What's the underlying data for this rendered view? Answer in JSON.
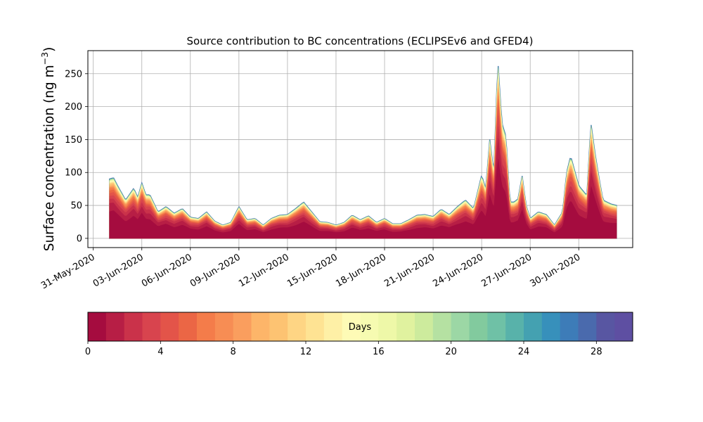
{
  "chart_data": {
    "type": "area",
    "title": "Source contribution to BC concentrations (ECLIPSEv6 and GFED4)",
    "ylabel": "Surface concentration (ng m",
    "ylabel_unit_exponent": "−3",
    "ylabel_close": ")",
    "xlabel": "",
    "x_range": [
      "2020-05-30T16:00",
      "2020-07-03T08:00"
    ],
    "ylim": [
      -14,
      285
    ],
    "yticks": [
      0,
      50,
      100,
      150,
      200,
      250
    ],
    "xticks": [
      "31-May-2020",
      "03-Jun-2020",
      "06-Jun-2020",
      "09-Jun-2020",
      "12-Jun-2020",
      "15-Jun-2020",
      "18-Jun-2020",
      "21-Jun-2020",
      "24-Jun-2020",
      "27-Jun-2020",
      "30-Jun-2020"
    ],
    "grid": true,
    "stacked_by": "Days",
    "series_count": 30,
    "total": {
      "dates": [
        "2020-06-01T00:00",
        "2020-06-01T06:00",
        "2020-06-01T12:00",
        "2020-06-02T00:00",
        "2020-06-02T12:00",
        "2020-06-02T18:00",
        "2020-06-03T00:00",
        "2020-06-03T06:00",
        "2020-06-03T12:00",
        "2020-06-04T00:00",
        "2020-06-04T12:00",
        "2020-06-05T00:00",
        "2020-06-05T12:00",
        "2020-06-06T00:00",
        "2020-06-06T12:00",
        "2020-06-07T00:00",
        "2020-06-07T12:00",
        "2020-06-08T00:00",
        "2020-06-08T12:00",
        "2020-06-09T00:00",
        "2020-06-09T12:00",
        "2020-06-10T00:00",
        "2020-06-10T12:00",
        "2020-06-11T00:00",
        "2020-06-11T12:00",
        "2020-06-12T00:00",
        "2020-06-12T12:00",
        "2020-06-13T00:00",
        "2020-06-13T12:00",
        "2020-06-14T00:00",
        "2020-06-14T12:00",
        "2020-06-15T00:00",
        "2020-06-15T12:00",
        "2020-06-16T00:00",
        "2020-06-16T12:00",
        "2020-06-17T00:00",
        "2020-06-17T12:00",
        "2020-06-18T00:00",
        "2020-06-18T12:00",
        "2020-06-19T00:00",
        "2020-06-19T12:00",
        "2020-06-20T00:00",
        "2020-06-20T12:00",
        "2020-06-21T00:00",
        "2020-06-21T12:00",
        "2020-06-22T00:00",
        "2020-06-22T12:00",
        "2020-06-23T00:00",
        "2020-06-23T12:00",
        "2020-06-24T00:00",
        "2020-06-24T06:00",
        "2020-06-24T12:00",
        "2020-06-24T18:00",
        "2020-06-25T00:00",
        "2020-06-25T06:00",
        "2020-06-25T12:00",
        "2020-06-25T18:00",
        "2020-06-26T00:00",
        "2020-06-26T06:00",
        "2020-06-26T12:00",
        "2020-06-26T18:00",
        "2020-06-27T00:00",
        "2020-06-27T12:00",
        "2020-06-28T00:00",
        "2020-06-28T12:00",
        "2020-06-29T00:00",
        "2020-06-29T06:00",
        "2020-06-29T12:00",
        "2020-06-30T00:00",
        "2020-06-30T12:00",
        "2020-06-30T18:00",
        "2020-07-01T00:00",
        "2020-07-01T06:00",
        "2020-07-01T12:00",
        "2020-07-01T18:00",
        "2020-07-02T00:00",
        "2020-07-02T08:00"
      ],
      "values": [
        90,
        92,
        80,
        58,
        76,
        62,
        84,
        66,
        66,
        40,
        48,
        38,
        45,
        32,
        30,
        40,
        26,
        20,
        24,
        48,
        28,
        30,
        20,
        30,
        35,
        36,
        45,
        55,
        40,
        25,
        24,
        20,
        24,
        35,
        28,
        34,
        24,
        30,
        22,
        22,
        28,
        35,
        36,
        33,
        44,
        36,
        48,
        58,
        45,
        96,
        75,
        150,
        100,
        270,
        175,
        155,
        55,
        55,
        60,
        95,
        50,
        30,
        40,
        36,
        20,
        40,
        100,
        125,
        80,
        65,
        175,
        130,
        92,
        58,
        55,
        52,
        50
      ]
    },
    "colorbar": {
      "label": "Days",
      "ticks": [
        0,
        4,
        8,
        12,
        16,
        20,
        24,
        28
      ],
      "min": 0,
      "max": 30,
      "colors": [
        "#a50c3f",
        "#b71e45",
        "#ca324a",
        "#d8444e",
        "#e35449",
        "#eb6645",
        "#f47c4a",
        "#f78d54",
        "#fa9e5e",
        "#fdb569",
        "#fdc372",
        "#fed584",
        "#fee393",
        "#fef0a6",
        "#fefbb6",
        "#f6fbb1",
        "#eef8a8",
        "#e0f29f",
        "#cdeb9d",
        "#b5e1a2",
        "#9cd7a5",
        "#82ca9e",
        "#6fc1a6",
        "#58b2aa",
        "#44a1b1",
        "#3790bb",
        "#3d7cb8",
        "#4a6aad",
        "#5856a2",
        "#5e4fa2"
      ]
    }
  }
}
